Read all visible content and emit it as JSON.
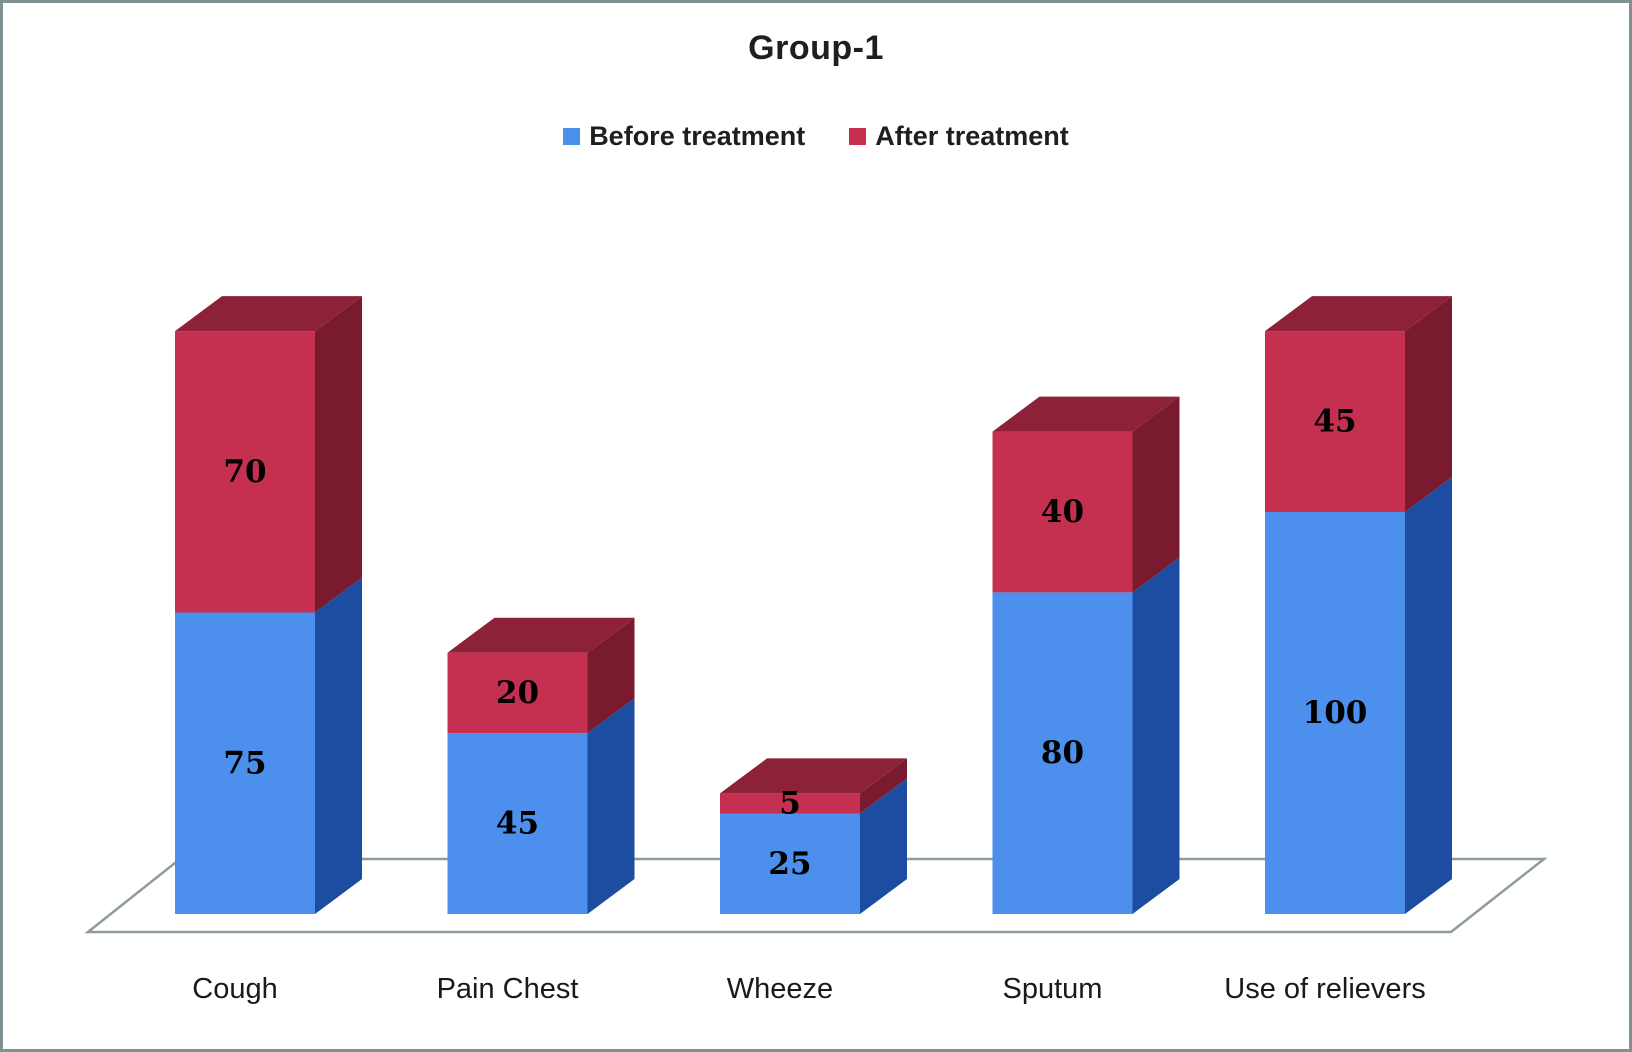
{
  "window": {
    "background": "#ffffff",
    "border_color": "#7f9192"
  },
  "chart_data": {
    "type": "bar",
    "variant": "3d-stacked-column",
    "title": "Group-1",
    "categories": [
      "Cough",
      "Pain Chest",
      "Wheeze",
      "Sputum",
      "Use of relievers"
    ],
    "series": [
      {
        "name": "Before treatment",
        "values": [
          75,
          45,
          25,
          80,
          100
        ],
        "front_color": "#4d8fec",
        "side_color": "#1c4da1",
        "top_color": "#2f5fb5"
      },
      {
        "name": "After treatment",
        "values": [
          70,
          20,
          5,
          40,
          45
        ],
        "front_color": "#c53051",
        "side_color": "#7a1a2e",
        "top_color": "#8c2138"
      }
    ],
    "value_labels_shown": true,
    "value_label_color": "#000000",
    "legend_position": "top",
    "axes": {
      "y_axis_visible": false,
      "x_axis_visible": true
    },
    "ylim": [
      0,
      145
    ],
    "grid": false,
    "floor_line_color": "#8e9c9b"
  }
}
